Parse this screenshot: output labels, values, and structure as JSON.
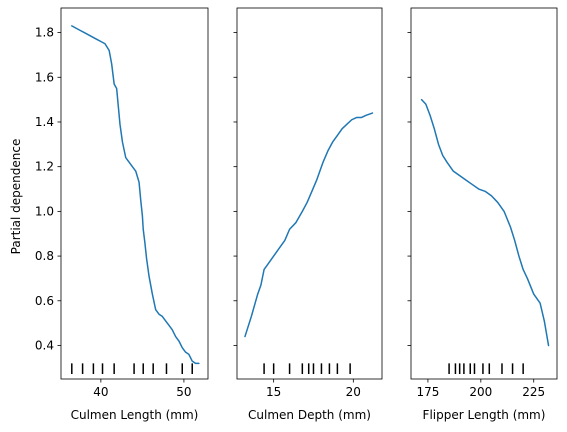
{
  "chart_data": {
    "type": "line",
    "ylabel": "Partial dependence",
    "ylim": [
      0.25,
      1.91
    ],
    "yticks": [
      0.4,
      0.6,
      0.8,
      1.0,
      1.2,
      1.4,
      1.6,
      1.8
    ],
    "ytick_labels": [
      "0.4",
      "0.6",
      "0.8",
      "1.0",
      "1.2",
      "1.4",
      "1.6",
      "1.8"
    ],
    "line_color": "#1f77b4",
    "panels": [
      {
        "xlabel": "Culmen Length (mm)",
        "xlim": [
          35.2,
          52.9
        ],
        "xticks": [
          40,
          50
        ],
        "xtick_labels": [
          "40",
          "50"
        ],
        "show_ytick_labels": true,
        "x": [
          36.5,
          37.0,
          37.5,
          38.0,
          38.5,
          39.0,
          39.5,
          40.0,
          40.5,
          41.0,
          41.3,
          41.6,
          41.9,
          42.1,
          42.3,
          42.6,
          43.0,
          43.4,
          43.8,
          44.2,
          44.6,
          44.8,
          45.0,
          45.1,
          45.3,
          45.5,
          45.8,
          46.2,
          46.6,
          47.0,
          47.4,
          47.8,
          48.2,
          48.6,
          49.0,
          49.4,
          49.8,
          50.2,
          50.6,
          51.0,
          51.4,
          51.8
        ],
        "y": [
          1.83,
          1.82,
          1.81,
          1.8,
          1.79,
          1.78,
          1.77,
          1.76,
          1.75,
          1.72,
          1.66,
          1.57,
          1.55,
          1.47,
          1.39,
          1.31,
          1.24,
          1.22,
          1.2,
          1.18,
          1.13,
          1.05,
          0.98,
          0.92,
          0.86,
          0.79,
          0.71,
          0.63,
          0.56,
          0.54,
          0.53,
          0.51,
          0.49,
          0.47,
          0.44,
          0.42,
          0.39,
          0.37,
          0.36,
          0.33,
          0.32,
          0.32
        ],
        "rug": [
          36.5,
          37.8,
          39.1,
          40.2,
          41.6,
          44.0,
          45.1,
          46.3,
          47.9,
          49.8,
          51.0
        ]
      },
      {
        "xlabel": "Culmen Depth (mm)",
        "xlim": [
          12.7,
          21.8
        ],
        "xticks": [
          15,
          20
        ],
        "xtick_labels": [
          "15",
          "20"
        ],
        "show_ytick_labels": false,
        "x": [
          13.2,
          13.6,
          14.0,
          14.2,
          14.4,
          14.6,
          14.9,
          15.3,
          15.7,
          16.0,
          16.4,
          16.8,
          17.1,
          17.4,
          17.7,
          17.9,
          18.1,
          18.4,
          18.7,
          19.0,
          19.3,
          19.6,
          19.9,
          20.2,
          20.5,
          20.8,
          21.2
        ],
        "y": [
          0.44,
          0.53,
          0.63,
          0.67,
          0.74,
          0.76,
          0.79,
          0.83,
          0.87,
          0.92,
          0.95,
          1.0,
          1.04,
          1.09,
          1.14,
          1.18,
          1.22,
          1.27,
          1.31,
          1.34,
          1.37,
          1.39,
          1.41,
          1.42,
          1.42,
          1.43,
          1.44
        ],
        "rug": [
          14.4,
          15.0,
          16.0,
          16.8,
          17.2,
          17.5,
          18.0,
          18.5,
          19.0,
          19.8
        ]
      },
      {
        "xlabel": "Flipper Length (mm)",
        "xlim": [
          167.0,
          236.0
        ],
        "xticks": [
          175,
          200,
          225
        ],
        "xtick_labels": [
          "175",
          "200",
          "225"
        ],
        "show_ytick_labels": false,
        "x": [
          172.0,
          174.0,
          176.0,
          178.0,
          180.0,
          182.0,
          184.0,
          187.0,
          190.0,
          193.0,
          196.0,
          199.0,
          202.0,
          205.0,
          208.0,
          211.0,
          214.0,
          216.0,
          218.0,
          220.0,
          222.0,
          225.0,
          228.0,
          230.0,
          232.0
        ],
        "y": [
          1.5,
          1.48,
          1.43,
          1.37,
          1.3,
          1.25,
          1.22,
          1.18,
          1.16,
          1.14,
          1.12,
          1.1,
          1.09,
          1.07,
          1.04,
          1.0,
          0.93,
          0.87,
          0.8,
          0.74,
          0.7,
          0.63,
          0.59,
          0.51,
          0.4
        ],
        "rug": [
          185.0,
          188.0,
          190.0,
          192.0,
          195.0,
          197.0,
          201.0,
          204.0,
          210.0,
          215.0,
          220.0
        ]
      }
    ]
  }
}
